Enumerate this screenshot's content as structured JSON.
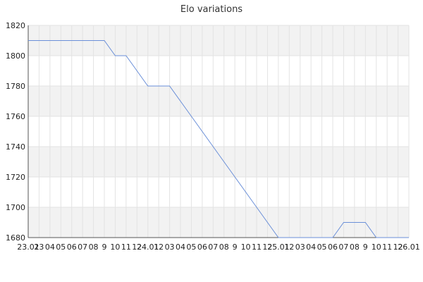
{
  "chart_data": {
    "type": "line",
    "title": "Elo variations",
    "xlabel": "",
    "ylabel": "",
    "ylim": [
      1680,
      1820
    ],
    "yticks": [
      1680,
      1700,
      1720,
      1740,
      1760,
      1780,
      1800,
      1820
    ],
    "grid": true,
    "legend": "none",
    "series_color": "#6a8fd8",
    "band_color": "#f2f2f2",
    "x_tick_labels": [
      "23.01",
      "23",
      "04",
      "05",
      "06",
      "07",
      "08",
      "9",
      "10",
      "11",
      "12",
      "24.01",
      "12",
      "03",
      "04",
      "05",
      "06",
      "07",
      "08",
      "9",
      "10",
      "11",
      "12",
      "25.01",
      "12",
      "03",
      "04",
      "05",
      "06",
      "07",
      "08",
      "9",
      "10",
      "11",
      "12",
      "26.01"
    ],
    "series": [
      {
        "values": [
          1810,
          1810,
          1810,
          1810,
          1810,
          1810,
          1810,
          1810,
          1800,
          1800,
          1790,
          1780,
          1780,
          1780,
          1770,
          1760,
          1750,
          1740,
          1730,
          1720,
          1710,
          1700,
          1690,
          1680,
          1680,
          1680,
          1680,
          1680,
          1680,
          1690,
          1690,
          1690,
          1680,
          1680,
          1680,
          1680
        ]
      }
    ]
  }
}
